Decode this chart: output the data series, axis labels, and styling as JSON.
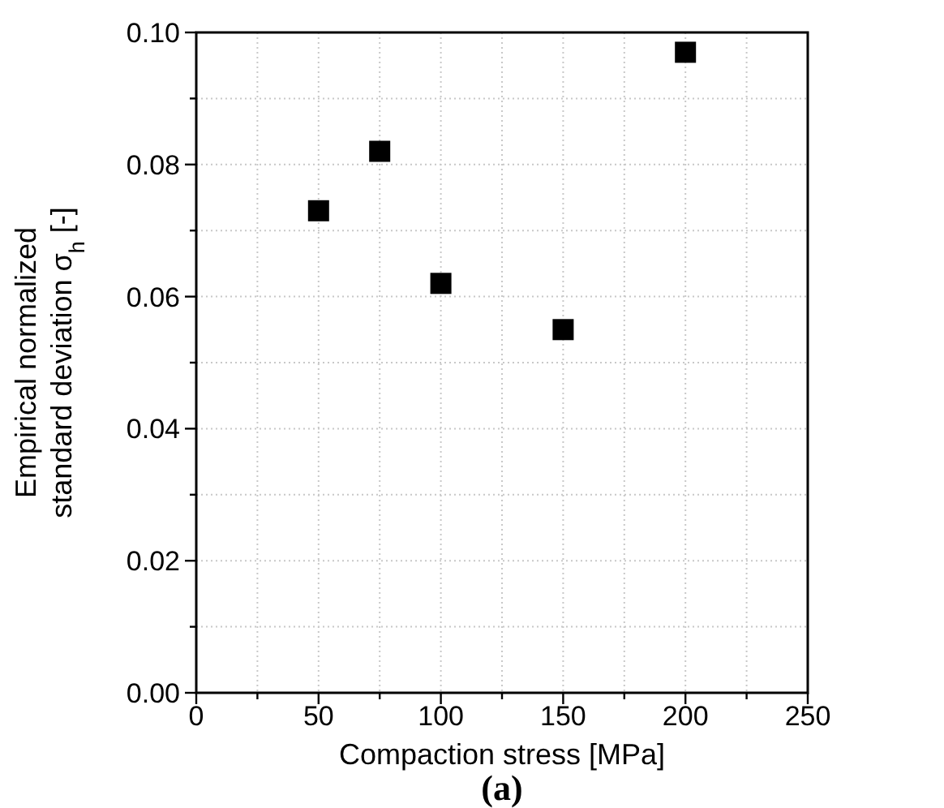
{
  "chart_data": {
    "type": "scatter",
    "xlabel": "Compaction stress [MPa]",
    "ylabel": "Empirical normalized\nstandard deviation σ$_{h}$ [-]",
    "annotations": [
      "(a)"
    ],
    "x": [
      50,
      75,
      100,
      150,
      200
    ],
    "series": [
      {
        "color": "#000000",
        "values": [
          0.073,
          0.082,
          0.062,
          0.055,
          0.097
        ]
      }
    ],
    "xlim": [
      0,
      250
    ],
    "xticks": [
      0,
      {
        "value": 25,
        "label": null
      },
      50,
      {
        "value": 75,
        "label": null
      },
      100,
      {
        "value": 125,
        "label": null
      },
      150,
      {
        "value": 175,
        "label": null
      },
      200,
      {
        "value": 225,
        "label": null
      },
      250
    ],
    "ylim": [
      0,
      0.1
    ],
    "yticks": [
      {
        "value": 0,
        "label": "0.00"
      },
      {
        "value": 0.01,
        "label": null
      },
      {
        "value": 0.02,
        "label": "0.02"
      },
      {
        "value": 0.03,
        "label": null
      },
      {
        "value": 0.04,
        "label": "0.04"
      },
      {
        "value": 0.05,
        "label": null
      },
      {
        "value": 0.06,
        "label": "0.06"
      },
      {
        "value": 0.07,
        "label": null
      },
      {
        "value": 0.08,
        "label": "0.08"
      },
      {
        "value": 0.09,
        "label": null
      },
      {
        "value": 0.1,
        "label": "0.10"
      }
    ],
    "grid": true,
    "marker": "square"
  }
}
